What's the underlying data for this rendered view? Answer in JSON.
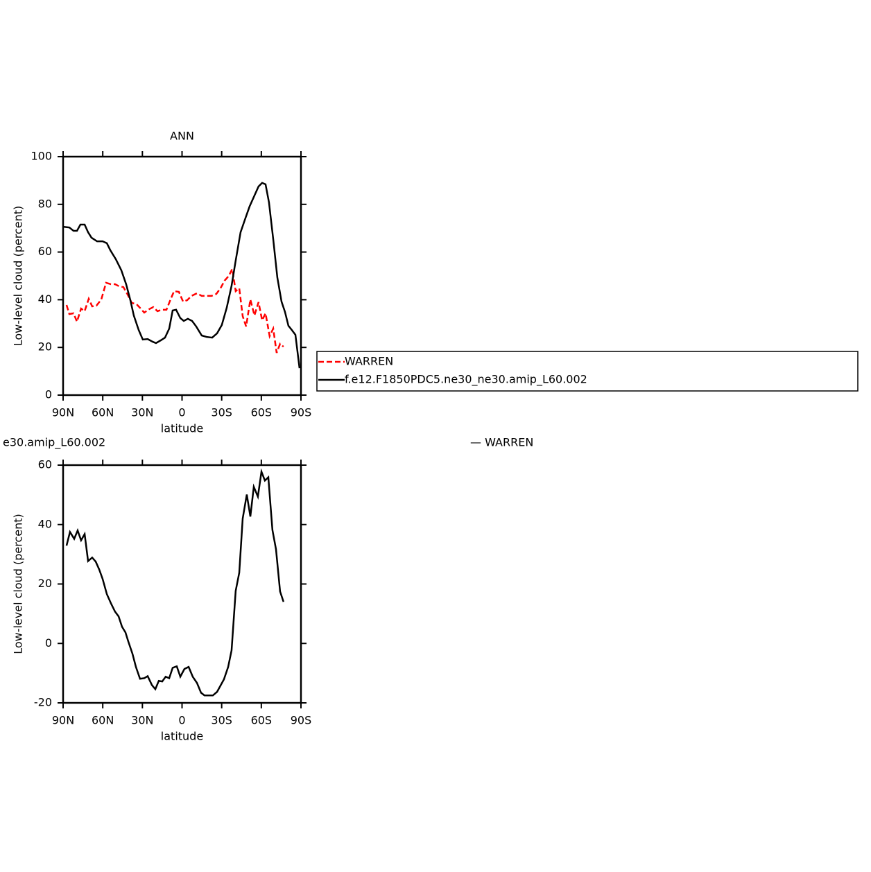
{
  "chart_data": [
    {
      "type": "line",
      "title": "ANN",
      "xlabel": "latitude",
      "ylabel": "Low-level cloud (percent)",
      "xlim": [
        90,
        -90
      ],
      "xticks": [
        {
          "value": 90,
          "label": "90N"
        },
        {
          "value": 60,
          "label": "60N"
        },
        {
          "value": 30,
          "label": "30N"
        },
        0,
        {
          "value": -30,
          "label": "30S"
        },
        {
          "value": -60,
          "label": "60S"
        },
        {
          "value": -90,
          "label": "90S"
        }
      ],
      "ylim": [
        0,
        100
      ],
      "yticks": [
        0,
        20,
        40,
        60,
        80,
        100
      ],
      "legend": "right",
      "series": [
        {
          "name": "WARREN",
          "color": "#ff0000",
          "dash": true,
          "x": [
            87.4,
            85.3,
            82.1,
            79.5,
            76.4,
            73.7,
            70.6,
            68,
            64.8,
            61.1,
            57.5,
            53.8,
            50.7,
            47.5,
            44.4,
            41.2,
            38.1,
            34.4,
            31.8,
            28.6,
            25,
            21.8,
            18.6,
            15.5,
            11.8,
            8.7,
            6,
            2.4,
            -0.8,
            -3.9,
            -7.1,
            -11.3,
            -14.9,
            -18.6,
            -22.3,
            -25.9,
            -29.1,
            -32.2,
            -35.4,
            -38,
            -40.6,
            -43.3,
            -45.9,
            -48.5,
            -51.7,
            -54.8,
            -57.9,
            -60.6,
            -63.2,
            -66.3,
            -69,
            -71.6,
            -74.2,
            -76.8
          ],
          "values": [
            37.8,
            34,
            34.3,
            30.8,
            36.3,
            35.2,
            40.4,
            37.2,
            37.5,
            40.1,
            47.1,
            46.5,
            46.5,
            45.6,
            45.3,
            42.2,
            38.7,
            38.1,
            36.6,
            34.6,
            36,
            36.9,
            35.2,
            35.8,
            35.8,
            40.1,
            43.6,
            43.3,
            39.2,
            39.8,
            41.6,
            42.7,
            41.6,
            41.6,
            41.6,
            42.4,
            44.8,
            48,
            50,
            52.9,
            43.6,
            44.8,
            33.1,
            28.8,
            40.1,
            33.4,
            39,
            31.4,
            34.3,
            24.7,
            27.9,
            17.7,
            21.5,
            20.3
          ]
        },
        {
          "name": "f.e12.F1850PDC5.ne30_ne30.amip_L60.002",
          "color": "#000000",
          "dash": false,
          "x": [
            90,
            85.3,
            82.1,
            79.5,
            76.9,
            73.7,
            71.1,
            68.5,
            64.3,
            60.1,
            56.9,
            54.3,
            50.1,
            45.9,
            42.3,
            39.1,
            36.5,
            32.8,
            29.7,
            26,
            22.3,
            19.7,
            16,
            12.9,
            9.7,
            7.1,
            4.5,
            1.3,
            -1.3,
            -4.4,
            -7.6,
            -10.7,
            -14.9,
            -18.6,
            -22.8,
            -26.5,
            -30.1,
            -33.8,
            -37.5,
            -40.6,
            -44.3,
            -47.9,
            -51.1,
            -54.8,
            -57.9,
            -60.6,
            -63.2,
            -65.8,
            -69,
            -72.1,
            -75.3,
            -77.9,
            -80.5,
            -83.1,
            -85.8,
            -88.9
          ],
          "values": [
            70.6,
            70.3,
            68.9,
            68.9,
            71.5,
            71.5,
            68.3,
            66,
            64.5,
            64.5,
            63.7,
            60.8,
            57,
            52.3,
            46.5,
            39.8,
            33.4,
            27.3,
            23.3,
            23.5,
            22.4,
            21.8,
            23,
            24.1,
            27.9,
            35.5,
            35.8,
            32.3,
            31.1,
            32,
            31.1,
            28.8,
            25,
            24.4,
            24.1,
            25.9,
            29.4,
            36.6,
            45.9,
            56.4,
            68.3,
            74.1,
            79.1,
            83.7,
            87.5,
            89,
            88.4,
            80.8,
            65.4,
            49.4,
            39.2,
            34.9,
            29.1,
            27.3,
            25.3,
            11.3
          ]
        }
      ]
    },
    {
      "type": "line",
      "title": "e30.amip_L60.002",
      "subtitle": "— WARREN",
      "xlabel": "latitude",
      "ylabel": "Low-level cloud (percent)",
      "xlim": [
        90,
        -90
      ],
      "xticks": [
        {
          "value": 90,
          "label": "90N"
        },
        {
          "value": 60,
          "label": "60N"
        },
        {
          "value": 30,
          "label": "30N"
        },
        0,
        {
          "value": -30,
          "label": "30S"
        },
        {
          "value": -60,
          "label": "60S"
        },
        {
          "value": -90,
          "label": "90S"
        }
      ],
      "ylim": [
        -20,
        60
      ],
      "yticks": [
        -20,
        0,
        20,
        40,
        60
      ],
      "series": [
        {
          "color": "#000000",
          "dash": false,
          "x": [
            87.4,
            84.8,
            81.6,
            79,
            76.4,
            73.7,
            71.1,
            68,
            65.3,
            62.7,
            60.1,
            56.9,
            53.8,
            50.7,
            48,
            45.4,
            42.8,
            40.7,
            37.5,
            34.9,
            31.8,
            28.6,
            26,
            22.8,
            20.2,
            17.6,
            15,
            12.4,
            9.7,
            7.1,
            4,
            1.3,
            -1.8,
            -5,
            -8.1,
            -11.3,
            -14.4,
            -17,
            -20.2,
            -23.3,
            -26.5,
            -29.1,
            -31.7,
            -34.9,
            -37.5,
            -40.6,
            -43.3,
            -45.9,
            -49,
            -51.7,
            -54.3,
            -57.4,
            -60.1,
            -62.7,
            -65.3,
            -68.4,
            -71.1,
            -74.2,
            -76.8
          ],
          "values": [
            32.9,
            37.5,
            35.2,
            38,
            34.7,
            36.8,
            27.7,
            28.9,
            27.5,
            24.9,
            21.7,
            16.6,
            13.5,
            10.7,
            9.1,
            5.6,
            3.7,
            0.7,
            -3.5,
            -7.9,
            -11.9,
            -11.7,
            -11,
            -14,
            -15.4,
            -12.6,
            -12.8,
            -11.2,
            -11.7,
            -8.2,
            -7.7,
            -11.2,
            -8.6,
            -7.9,
            -11.2,
            -13.3,
            -16.6,
            -17.5,
            -17.5,
            -17.5,
            -16.3,
            -14.2,
            -12.1,
            -7.9,
            -2.3,
            17.7,
            23.8,
            42,
            50.1,
            42.7,
            52.7,
            49.4,
            57.8,
            54.8,
            55.9,
            38.2,
            31.7,
            17.5,
            14
          ]
        }
      ]
    }
  ]
}
